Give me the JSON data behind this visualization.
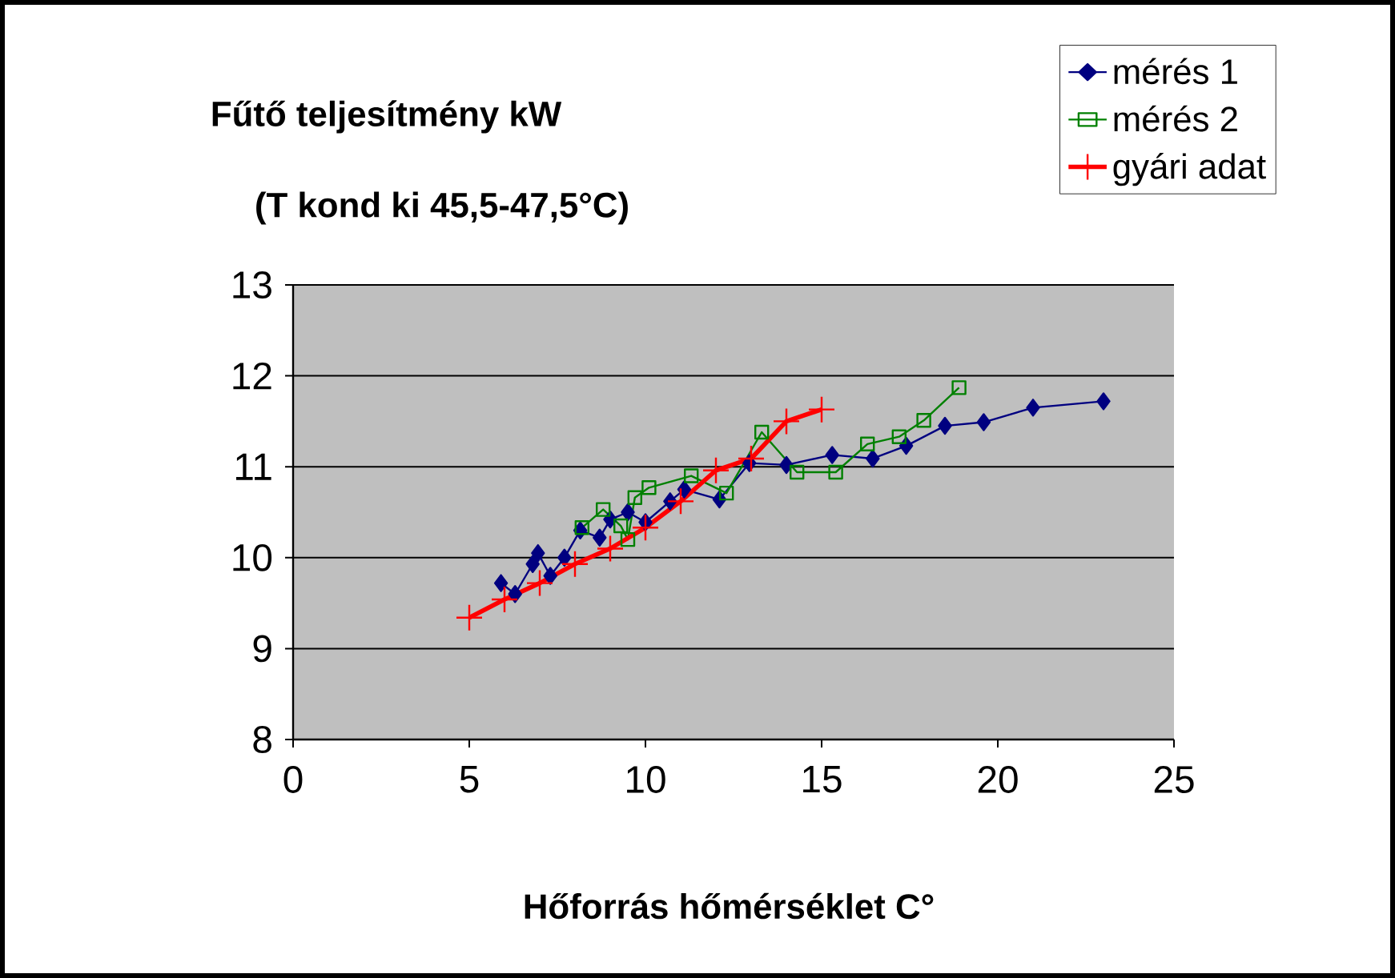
{
  "chart_data": {
    "type": "line",
    "title": "Fűtő teljesítmény kW",
    "subtitle": "(T kond  ki 45,5-47,5°C)",
    "xlabel": "Hőforrás hőmérséklet C°",
    "xlim": [
      0,
      25
    ],
    "xticks": [
      0,
      5,
      10,
      15,
      20,
      25
    ],
    "ylim": [
      8,
      13
    ],
    "yticks": [
      8,
      9,
      10,
      11,
      12,
      13
    ],
    "grid": "y",
    "legend": "top right",
    "series": [
      {
        "name": "mérés 1",
        "color": "#000080",
        "marker": "diamond",
        "x": [
          5.9,
          6.3,
          6.8,
          6.95,
          7.3,
          7.7,
          8.15,
          8.7,
          9.0,
          9.5,
          10.0,
          10.7,
          11.1,
          12.1,
          12.95,
          14.0,
          15.3,
          16.45,
          17.4,
          18.5,
          19.6,
          21.0,
          23.0
        ],
        "values": [
          9.72,
          9.6,
          9.93,
          10.05,
          9.8,
          10.0,
          10.3,
          10.22,
          10.42,
          10.5,
          10.39,
          10.62,
          10.75,
          10.64,
          11.04,
          11.02,
          11.13,
          11.09,
          11.23,
          11.45,
          11.49,
          11.65,
          11.72
        ]
      },
      {
        "name": "mérés 2",
        "color": "#008000",
        "marker": "square",
        "x": [
          8.2,
          8.8,
          9.3,
          9.5,
          9.7,
          10.1,
          11.3,
          12.3,
          13.3,
          14.3,
          15.4,
          16.3,
          17.2,
          17.9,
          18.9
        ],
        "values": [
          10.33,
          10.53,
          10.35,
          10.2,
          10.66,
          10.77,
          10.9,
          10.71,
          11.38,
          10.94,
          10.94,
          11.25,
          11.33,
          11.51,
          11.87
        ]
      },
      {
        "name": "gyári adat",
        "color": "#ff0000",
        "marker": "cross",
        "x": [
          5,
          6,
          7,
          8,
          9,
          10,
          11,
          12,
          13,
          14,
          15
        ],
        "values": [
          9.34,
          9.54,
          9.72,
          9.93,
          10.1,
          10.33,
          10.62,
          10.96,
          11.09,
          11.5,
          11.63
        ]
      }
    ]
  }
}
